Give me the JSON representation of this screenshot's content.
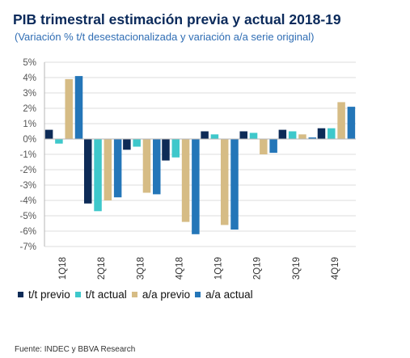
{
  "title": "PIB trimestral estimación previa y actual 2018-19",
  "subtitle": "(Variación  % t/t desestacionalizada  y variación  a/a serie original)",
  "source": "Fuente:  INDEC   y BBVA Research",
  "colors": {
    "tt_previo": "#0d2b57",
    "tt_actual": "#3ec8cb",
    "aa_previo": "#d6bc85",
    "aa_actual": "#2476b8",
    "grid": "#dcdcdc",
    "axis": "#b7b7b7"
  },
  "chart_data": {
    "type": "bar",
    "title": "PIB trimestral estimación previa y actual 2018-19",
    "categories": [
      "1Q18",
      "2Q18",
      "3Q18",
      "4Q18",
      "1Q19",
      "2Q19",
      "3Q19",
      "4Q19"
    ],
    "ylim": [
      -7,
      5
    ],
    "y_ticks": [
      "5%",
      "4%",
      "3%",
      "2%",
      "1%",
      "0%",
      "-1%",
      "-2%",
      "-3%",
      "-4%",
      "-5%",
      "-6%",
      "-7%"
    ],
    "y_tick_values": [
      5,
      4,
      3,
      2,
      1,
      0,
      -1,
      -2,
      -3,
      -4,
      -5,
      -6,
      -7
    ],
    "grid": true,
    "legend_position": "bottom",
    "series": [
      {
        "name": "t/t previo",
        "color_key": "tt_previo",
        "values": [
          0.6,
          -4.2,
          -0.7,
          -1.4,
          0.5,
          0.5,
          0.6,
          0.7
        ]
      },
      {
        "name": "t/t actual",
        "color_key": "tt_actual",
        "values": [
          -0.3,
          -4.7,
          -0.5,
          -1.2,
          0.3,
          0.4,
          0.5,
          0.7
        ]
      },
      {
        "name": "a/a previo",
        "color_key": "aa_previo",
        "values": [
          3.9,
          -4.0,
          -3.5,
          -5.4,
          -5.6,
          -1.0,
          0.3,
          2.4
        ]
      },
      {
        "name": "a/a actual",
        "color_key": "aa_actual",
        "values": [
          4.1,
          -3.8,
          -3.6,
          -6.2,
          -5.9,
          -0.9,
          0.1,
          2.1
        ]
      }
    ]
  }
}
